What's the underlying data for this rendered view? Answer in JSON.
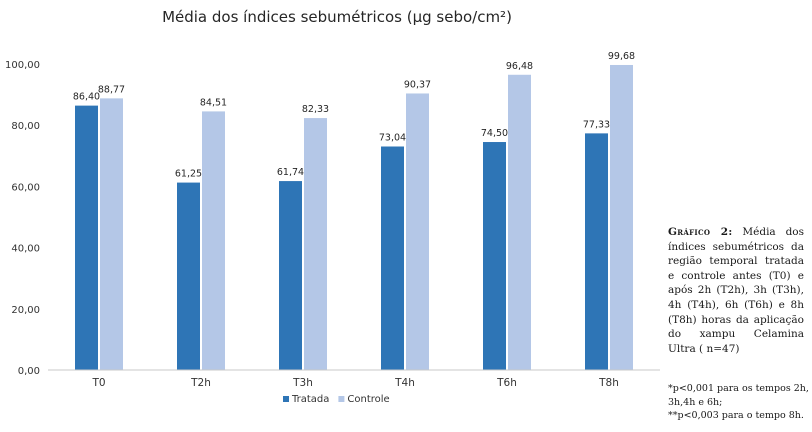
{
  "chart_data": {
    "type": "bar",
    "title": "Média dos índices sebumétricos (µg sebo/cm²)",
    "categories": [
      "T0",
      "T2h",
      "T3h",
      "T4h",
      "T6h",
      "T8h"
    ],
    "series": [
      {
        "name": "Tratada",
        "color": "#2e75b6",
        "values": [
          86.4,
          61.25,
          61.74,
          73.04,
          74.5,
          77.33
        ],
        "labels": [
          "86,40",
          "61,25",
          "61,74",
          "73,04",
          "74,50",
          "77,33"
        ]
      },
      {
        "name": "Controle",
        "color": "#b4c7e7",
        "values": [
          88.77,
          84.51,
          82.33,
          90.37,
          96.48,
          99.68
        ],
        "labels": [
          "88,77",
          "84,51",
          "82,33",
          "90,37",
          "96,48",
          "99,68"
        ]
      }
    ],
    "ylim": [
      0,
      100
    ],
    "yticks": [
      0,
      20,
      40,
      60,
      80,
      100
    ],
    "ytick_labels": [
      "0,00",
      "20,00",
      "40,00",
      "60,00",
      "80,00",
      "100,00"
    ],
    "grid": false,
    "legend": "bottom-center"
  },
  "caption": {
    "label": "Gráfico 2:",
    "text": "Média dos índices sebumétricos da região temporal tratada e controle antes (T0) e após 2h (T2h), 3h (T3h), 4h (T4h), 6h (T6h) e 8h (T8h) horas da aplicação do xampu Celamina Ultra ( n=47)"
  },
  "notes": {
    "line1": "*p<0,001 para os tempos 2h,",
    "line2": "3h,4h e 6h;",
    "line3": "**p<0,003 para o tempo 8h."
  }
}
